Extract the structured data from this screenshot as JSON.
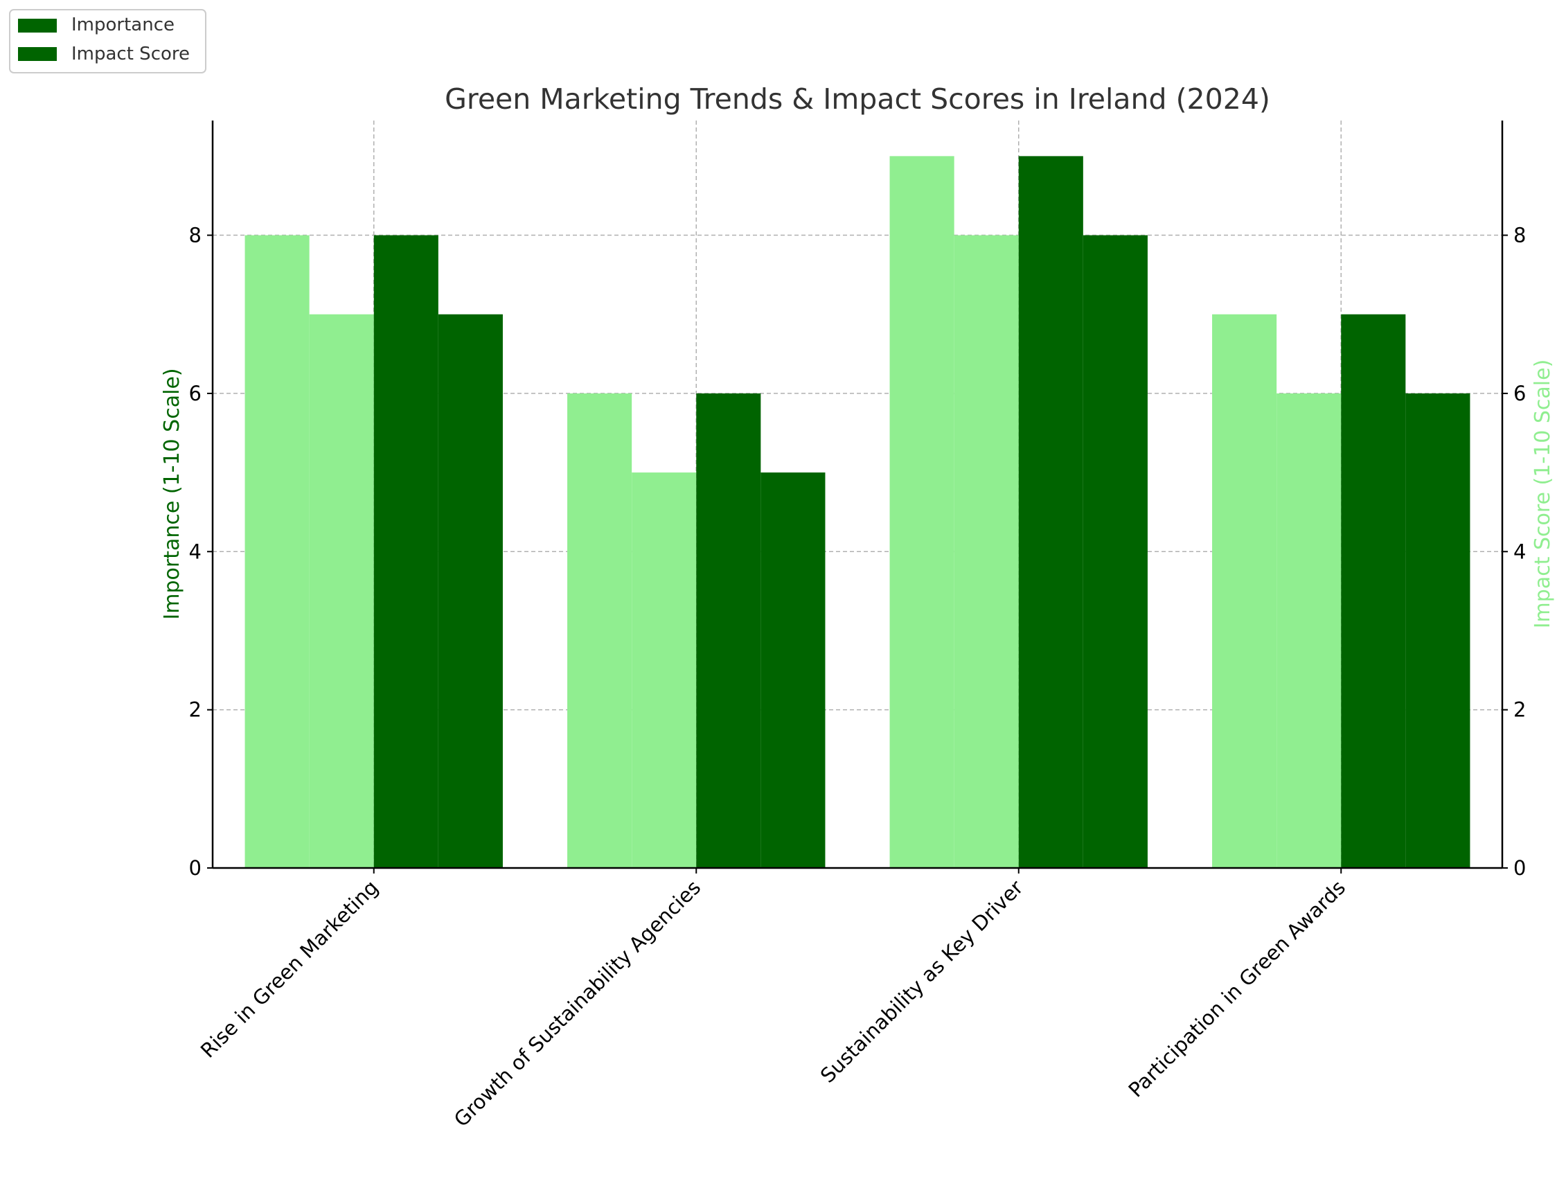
{
  "chart_data": {
    "type": "bar",
    "title": "Green Marketing Trends & Impact Scores in Ireland (2024)",
    "categories": [
      "Rise in Green Marketing",
      "Growth of Sustainability Agencies",
      "Sustainability as Key Driver",
      "Participation in Green Awards"
    ],
    "left_axis": {
      "label": "Importance (1-10 Scale)",
      "ylim": [
        0,
        9.45
      ],
      "ticks": [
        0,
        2,
        4,
        6,
        8
      ],
      "label_color": "#006400"
    },
    "right_axis": {
      "label": "Impact Score (1-10 Scale)",
      "ylim": [
        0,
        9.45
      ],
      "ticks": [
        0,
        2,
        4,
        6,
        8
      ],
      "label_color": "#90ee90"
    },
    "series": [
      {
        "name": "Importance",
        "axis": "left",
        "color": "#90ee90",
        "values": [
          8,
          6,
          9,
          7
        ]
      },
      {
        "name": "Impact Score",
        "axis": "left",
        "color": "#90ee90",
        "values": [
          7,
          5,
          8,
          6
        ]
      },
      {
        "name": "Importance",
        "axis": "right",
        "color": "#006400",
        "values": [
          8,
          6,
          9,
          7
        ]
      },
      {
        "name": "Impact Score",
        "axis": "right",
        "color": "#006400",
        "values": [
          7,
          5,
          8,
          6
        ]
      }
    ],
    "legend": {
      "placement": "top-left",
      "entries": [
        {
          "label": "Importance",
          "color": "#006400"
        },
        {
          "label": "Impact Score",
          "color": "#006400"
        }
      ]
    },
    "grid": true
  }
}
